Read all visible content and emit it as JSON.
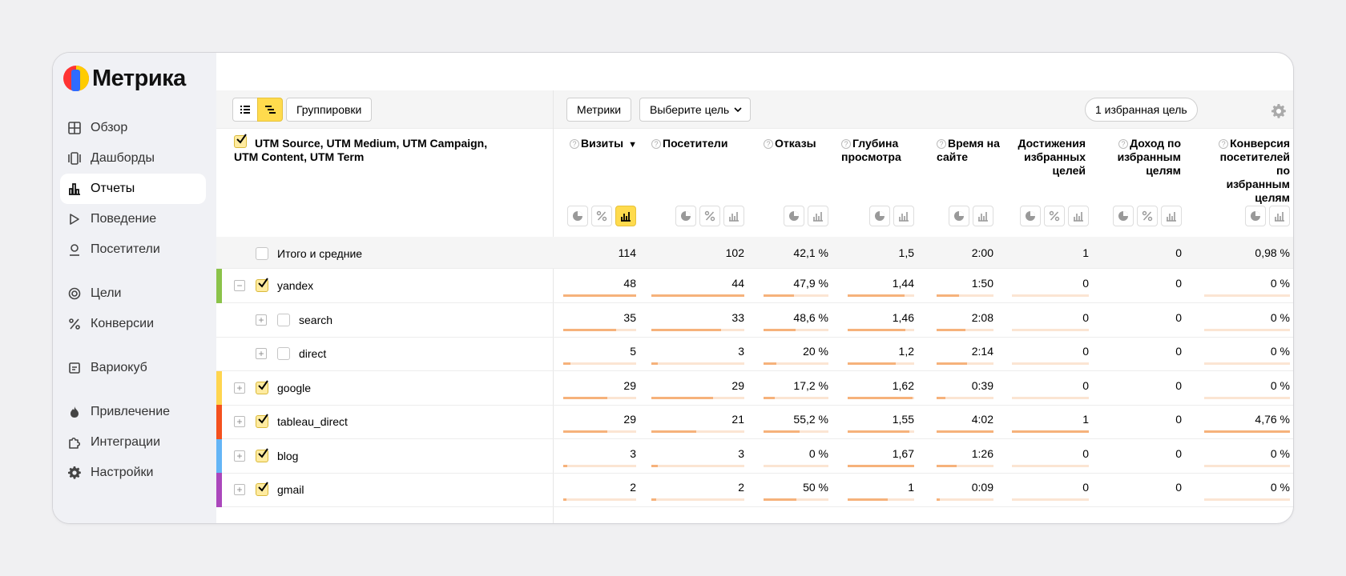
{
  "app": {
    "title": "Метрика"
  },
  "nav": [
    {
      "label": "Обзор",
      "icon": "grid-icon",
      "active": false
    },
    {
      "label": "Дашборды",
      "icon": "dashboards-icon",
      "active": false
    },
    {
      "label": "Отчеты",
      "icon": "reports-icon",
      "active": true
    },
    {
      "label": "Поведение",
      "icon": "play-icon",
      "active": false
    },
    {
      "label": "Посетители",
      "icon": "user-icon",
      "active": false
    },
    {
      "gap": true
    },
    {
      "label": "Цели",
      "icon": "target-icon",
      "active": false
    },
    {
      "label": "Конверсии",
      "icon": "percent-icon",
      "active": false
    },
    {
      "gap": true
    },
    {
      "label": "Вариокуб",
      "icon": "variocube-icon",
      "active": false
    },
    {
      "gap": true
    },
    {
      "label": "Привлечение",
      "icon": "fire-icon",
      "active": false
    },
    {
      "label": "Интеграции",
      "icon": "puzzle-icon",
      "active": false
    },
    {
      "label": "Настройки",
      "icon": "gear-icon",
      "active": false
    }
  ],
  "toolbar": {
    "groupings_label": "Группировки",
    "metrics_label": "Метрики",
    "goal_select_label": "Выберите цель",
    "favorite_goal_label": "1 избранная цель"
  },
  "table": {
    "dimension_header": "UTM Source, UTM Medium, UTM Campaign, UTM Content, UTM Term",
    "columns": [
      {
        "title": "Визиты",
        "sorted": "▼",
        "help": true
      },
      {
        "title": "Посетители",
        "help": true
      },
      {
        "title": "Отказы",
        "help": true
      },
      {
        "title": "Глубина просмотра",
        "help": true
      },
      {
        "title": "Время на сайте",
        "help": true
      },
      {
        "title": "Достижения избранных целей",
        "help": false
      },
      {
        "title": "Доход по избранным целям",
        "help": true
      },
      {
        "title": "Конверсия посетителей по избранным целям",
        "help": true
      }
    ],
    "total": {
      "label": "Итого и средние",
      "values": [
        "114",
        "102",
        "42,1 %",
        "1,5",
        "2:00",
        "1",
        "0",
        "0,98 %"
      ]
    },
    "rows": [
      {
        "label": "yandex",
        "level": 0,
        "expanded": true,
        "checked": true,
        "color": "#8bc34a",
        "values": [
          "48",
          "44",
          "47,9 %",
          "1,44",
          "1:50",
          "0",
          "0",
          "0 %"
        ],
        "fills": [
          1,
          1,
          0.47,
          0.86,
          0.4,
          0,
          null,
          0
        ]
      },
      {
        "label": "search",
        "level": 1,
        "expanded": false,
        "checked": false,
        "color": null,
        "values": [
          "35",
          "33",
          "48,6 %",
          "1,46",
          "2:08",
          "0",
          "0",
          "0 %"
        ],
        "fills": [
          0.73,
          0.75,
          0.49,
          0.87,
          0.5,
          0,
          null,
          0
        ]
      },
      {
        "label": "direct",
        "level": 1,
        "expanded": false,
        "checked": false,
        "color": null,
        "values": [
          "5",
          "3",
          "20 %",
          "1,2",
          "2:14",
          "0",
          "0",
          "0 %"
        ],
        "fills": [
          0.1,
          0.07,
          0.2,
          0.72,
          0.53,
          0,
          null,
          0
        ]
      },
      {
        "label": "google",
        "level": 0,
        "expanded": false,
        "checked": true,
        "color": "#ffd54f",
        "values": [
          "29",
          "29",
          "17,2 %",
          "1,62",
          "0:39",
          "0",
          "0",
          "0 %"
        ],
        "fills": [
          0.6,
          0.66,
          0.17,
          0.97,
          0.15,
          0,
          null,
          0
        ]
      },
      {
        "label": "tableau_direct",
        "level": 0,
        "expanded": false,
        "checked": true,
        "color": "#f4511e",
        "values": [
          "29",
          "21",
          "55,2 %",
          "1,55",
          "4:02",
          "1",
          "0",
          "4,76 %"
        ],
        "fills": [
          0.6,
          0.48,
          0.55,
          0.93,
          1,
          1,
          null,
          1
        ]
      },
      {
        "label": "blog",
        "level": 0,
        "expanded": false,
        "checked": true,
        "color": "#64b5f6",
        "values": [
          "3",
          "3",
          "0 %",
          "1,67",
          "1:26",
          "0",
          "0",
          "0 %"
        ],
        "fills": [
          0.06,
          0.07,
          0,
          1,
          0.35,
          0,
          null,
          0
        ]
      },
      {
        "label": "gmail",
        "level": 0,
        "expanded": false,
        "checked": true,
        "color": "#ab47bc",
        "values": [
          "2",
          "2",
          "50 %",
          "1",
          "0:09",
          "0",
          "0",
          "0 %"
        ],
        "fills": [
          0.04,
          0.05,
          0.5,
          0.6,
          0.04,
          0,
          null,
          0
        ]
      }
    ]
  }
}
